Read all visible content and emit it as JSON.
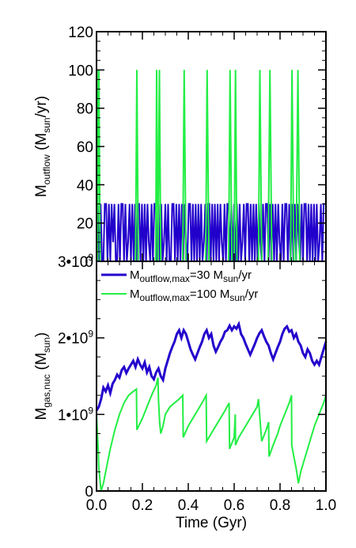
{
  "chart_data": [
    {
      "id": "top",
      "type": "line",
      "ylabel_main": "M",
      "ylabel_sub": "outflow",
      "ylabel_rest_a": " (M",
      "ylabel_rest_sub": "sun",
      "ylabel_rest_b": "/yr)",
      "ylim": [
        0,
        120
      ],
      "xlim": [
        0,
        1
      ],
      "yticks": [
        "0",
        "20",
        "40",
        "60",
        "80",
        "100",
        "120"
      ],
      "grid": false,
      "series": [
        {
          "color": "#2200cc",
          "values_x": [
            0.0,
            0.006,
            0.012,
            0.018,
            0.024,
            0.03,
            0.036,
            0.042,
            0.048,
            0.054,
            0.06,
            0.066,
            0.072,
            0.078,
            0.084,
            0.09,
            0.096,
            0.102,
            0.108,
            0.114,
            0.12,
            0.126,
            0.132,
            0.138,
            0.144,
            0.15,
            0.156,
            0.162,
            0.168,
            0.174,
            0.18,
            0.186,
            0.192,
            0.198,
            0.204,
            0.21,
            0.216,
            0.222,
            0.228,
            0.234,
            0.24,
            0.246,
            0.252,
            0.258,
            0.264,
            0.27,
            0.276,
            0.282,
            0.288,
            0.294,
            0.3,
            0.306,
            0.312,
            0.318,
            0.324,
            0.33,
            0.336,
            0.342,
            0.348,
            0.354,
            0.36,
            0.366,
            0.372,
            0.378,
            0.384,
            0.39,
            0.396,
            0.402,
            0.408,
            0.414,
            0.42,
            0.426,
            0.432,
            0.438,
            0.444,
            0.45,
            0.456,
            0.462,
            0.468,
            0.474,
            0.48,
            0.486,
            0.492,
            0.498,
            0.504,
            0.51,
            0.516,
            0.522,
            0.528,
            0.534,
            0.54,
            0.546,
            0.552,
            0.558,
            0.564,
            0.57,
            0.576,
            0.582,
            0.588,
            0.594,
            0.6,
            0.606,
            0.612,
            0.618,
            0.624,
            0.63,
            0.636,
            0.642,
            0.648,
            0.654,
            0.66,
            0.666,
            0.672,
            0.678,
            0.684,
            0.69,
            0.696,
            0.702,
            0.708,
            0.714,
            0.72,
            0.726,
            0.732,
            0.738,
            0.744,
            0.75,
            0.756,
            0.762,
            0.768,
            0.774,
            0.78,
            0.786,
            0.792,
            0.798,
            0.804,
            0.81,
            0.816,
            0.822,
            0.828,
            0.834,
            0.84,
            0.846,
            0.852,
            0.858,
            0.864,
            0.87,
            0.876,
            0.882,
            0.888,
            0.894,
            0.9,
            0.906,
            0.912,
            0.918,
            0.924,
            0.93,
            0.936,
            0.942,
            0.948,
            0.954,
            0.96,
            0.966,
            0.972,
            0.978,
            0.984,
            0.99,
            0.996
          ],
          "values_y": [
            0,
            30,
            0,
            30,
            0,
            0,
            30,
            30,
            0,
            30,
            0,
            30,
            10,
            30,
            0,
            0,
            30,
            0,
            30,
            30,
            0,
            30,
            0,
            10,
            30,
            0,
            30,
            0,
            30,
            0,
            30,
            30,
            0,
            30,
            0,
            30,
            0,
            30,
            10,
            0,
            30,
            0,
            30,
            30,
            0,
            30,
            0,
            30,
            0,
            10,
            30,
            0,
            30,
            0,
            0,
            30,
            30,
            0,
            30,
            0,
            30,
            0,
            30,
            0,
            30,
            10,
            0,
            30,
            30,
            0,
            30,
            0,
            30,
            0,
            30,
            0,
            30,
            0,
            10,
            30,
            0,
            30,
            30,
            0,
            30,
            0,
            30,
            0,
            30,
            0,
            30,
            10,
            0,
            30,
            0,
            30,
            30,
            0,
            30,
            0,
            30,
            0,
            30,
            0,
            30,
            0,
            10,
            30,
            0,
            30,
            30,
            0,
            30,
            0,
            30,
            0,
            30,
            0,
            30,
            10,
            0,
            30,
            0,
            30,
            30,
            0,
            30,
            0,
            30,
            0,
            30,
            0,
            30,
            10,
            0,
            30,
            0,
            30,
            30,
            0,
            30,
            0,
            30,
            0,
            30,
            0,
            30,
            10,
            0,
            30,
            0,
            30,
            30,
            0,
            30,
            0,
            30,
            0,
            30,
            0,
            30,
            0,
            10,
            30,
            0,
            30,
            30
          ]
        },
        {
          "color": "#22ee44",
          "values_x": [
            0.0,
            0.002,
            0.004,
            0.01,
            0.016,
            0.02,
            0.03,
            0.04,
            0.05,
            0.06,
            0.07,
            0.08,
            0.09,
            0.1,
            0.11,
            0.12,
            0.13,
            0.14,
            0.15,
            0.16,
            0.17,
            0.176,
            0.182,
            0.19,
            0.2,
            0.21,
            0.22,
            0.23,
            0.24,
            0.25,
            0.258,
            0.262,
            0.268,
            0.274,
            0.28,
            0.29,
            0.3,
            0.31,
            0.32,
            0.33,
            0.34,
            0.35,
            0.36,
            0.37,
            0.376,
            0.382,
            0.39,
            0.4,
            0.41,
            0.42,
            0.43,
            0.44,
            0.45,
            0.46,
            0.47,
            0.476,
            0.482,
            0.49,
            0.5,
            0.51,
            0.52,
            0.53,
            0.54,
            0.55,
            0.56,
            0.57,
            0.576,
            0.582,
            0.59,
            0.6,
            0.606,
            0.612,
            0.62,
            0.63,
            0.64,
            0.65,
            0.66,
            0.67,
            0.68,
            0.69,
            0.7,
            0.706,
            0.712,
            0.72,
            0.73,
            0.74,
            0.748,
            0.756,
            0.764,
            0.772,
            0.78,
            0.79,
            0.8,
            0.81,
            0.82,
            0.83,
            0.84,
            0.846,
            0.852,
            0.86,
            0.87,
            0.878,
            0.886,
            0.894,
            0.902,
            0.91,
            0.92,
            0.93,
            0.94,
            0.95,
            0.96,
            0.97,
            0.98,
            0.99,
            1.0
          ],
          "values_y": [
            0,
            100,
            0,
            100,
            0,
            0,
            0,
            0,
            0,
            0,
            0,
            0,
            0,
            0,
            0,
            0,
            0,
            0,
            0,
            0,
            0,
            100,
            0,
            0,
            0,
            0,
            0,
            0,
            0,
            0,
            0,
            100,
            0,
            100,
            0,
            0,
            0,
            0,
            0,
            0,
            0,
            0,
            0,
            0,
            0,
            100,
            0,
            0,
            0,
            0,
            0,
            0,
            0,
            0,
            0,
            0,
            100,
            0,
            0,
            0,
            0,
            0,
            0,
            0,
            0,
            0,
            0,
            100,
            0,
            0,
            100,
            0,
            0,
            0,
            0,
            0,
            0,
            0,
            0,
            0,
            0,
            0,
            100,
            0,
            0,
            0,
            0,
            100,
            0,
            0,
            0,
            0,
            0,
            0,
            0,
            0,
            0,
            0,
            100,
            0,
            0,
            100,
            0,
            0,
            0,
            0,
            0,
            0,
            0,
            0,
            0,
            0,
            0,
            0,
            0
          ]
        }
      ]
    },
    {
      "id": "bottom",
      "type": "line",
      "ylabel_main": "M",
      "ylabel_sub": "gas,nuc",
      "ylabel_rest_a": " (M",
      "ylabel_rest_sub": "sun",
      "ylabel_rest_b": ")",
      "xlabel": "Time (Gyr)",
      "ylim": [
        0,
        3000000000
      ],
      "xlim": [
        0,
        1
      ],
      "xticks": [
        "0.0",
        "0.2",
        "0.4",
        "0.6",
        "0.8",
        "1.0"
      ],
      "yticks": [
        {
          "base": "0",
          "exp": ""
        },
        {
          "base": "1•10",
          "exp": "9"
        },
        {
          "base": "2•10",
          "exp": "9"
        },
        {
          "base": "3•10",
          "exp": "9"
        }
      ],
      "grid": false,
      "legend_position": "top-left",
      "series": [
        {
          "color": "#2200cc",
          "legend_main": "M",
          "legend_sub": "outflow,max",
          "legend_mid": "=30 M",
          "legend_sub2": "sun",
          "legend_end": "/yr",
          "values_x": [
            0.0,
            0.01,
            0.02,
            0.03,
            0.04,
            0.05,
            0.06,
            0.07,
            0.08,
            0.09,
            0.1,
            0.11,
            0.12,
            0.13,
            0.14,
            0.15,
            0.16,
            0.17,
            0.18,
            0.19,
            0.2,
            0.21,
            0.22,
            0.23,
            0.24,
            0.25,
            0.26,
            0.27,
            0.28,
            0.29,
            0.3,
            0.31,
            0.32,
            0.33,
            0.34,
            0.35,
            0.36,
            0.37,
            0.38,
            0.39,
            0.4,
            0.41,
            0.42,
            0.43,
            0.44,
            0.45,
            0.46,
            0.47,
            0.48,
            0.49,
            0.5,
            0.51,
            0.52,
            0.53,
            0.54,
            0.55,
            0.56,
            0.57,
            0.58,
            0.59,
            0.6,
            0.61,
            0.62,
            0.63,
            0.64,
            0.65,
            0.66,
            0.67,
            0.68,
            0.69,
            0.7,
            0.71,
            0.72,
            0.73,
            0.74,
            0.75,
            0.76,
            0.77,
            0.78,
            0.79,
            0.8,
            0.81,
            0.82,
            0.83,
            0.84,
            0.85,
            0.86,
            0.87,
            0.88,
            0.89,
            0.9,
            0.91,
            0.92,
            0.93,
            0.94,
            0.95,
            0.96,
            0.97,
            0.98,
            0.99,
            1.0
          ],
          "values_y": [
            1050000000,
            1100000000,
            1200000000,
            1350000000,
            1300000000,
            1380000000,
            1280000000,
            1400000000,
            1450000000,
            1520000000,
            1480000000,
            1580000000,
            1620000000,
            1540000000,
            1600000000,
            1650000000,
            1700000000,
            1620000000,
            1720000000,
            1650000000,
            1600000000,
            1680000000,
            1550000000,
            1620000000,
            1500000000,
            1460000000,
            1550000000,
            1600000000,
            1500000000,
            1450000000,
            1600000000,
            1700000000,
            1800000000,
            1880000000,
            1950000000,
            2050000000,
            2100000000,
            2000000000,
            2100000000,
            2050000000,
            1950000000,
            1850000000,
            1780000000,
            1720000000,
            1800000000,
            1880000000,
            1950000000,
            2050000000,
            2100000000,
            2000000000,
            2050000000,
            1900000000,
            1820000000,
            1880000000,
            1950000000,
            2000000000,
            2080000000,
            2100000000,
            2160000000,
            2100000000,
            2150000000,
            2120000000,
            2180000000,
            2050000000,
            2000000000,
            1920000000,
            1850000000,
            1780000000,
            1850000000,
            1920000000,
            2000000000,
            2060000000,
            2100000000,
            2020000000,
            1950000000,
            1900000000,
            1800000000,
            1720000000,
            1800000000,
            1880000000,
            1950000000,
            2050000000,
            2120000000,
            2150000000,
            2080000000,
            2100000000,
            2000000000,
            2050000000,
            1950000000,
            1900000000,
            1800000000,
            1750000000,
            1850000000,
            1800000000,
            1700000000,
            1650000000,
            1700000000,
            1650000000,
            1750000000,
            1850000000,
            1950000000
          ]
        },
        {
          "color": "#22ee44",
          "legend_main": "M",
          "legend_sub": "outflow,max",
          "legend_mid": "=100 M",
          "legend_sub2": "sun",
          "legend_end": "/yr",
          "values_x": [
            0.0,
            0.008,
            0.01,
            0.02,
            0.03,
            0.04,
            0.05,
            0.06,
            0.08,
            0.1,
            0.12,
            0.14,
            0.16,
            0.174,
            0.176,
            0.2,
            0.22,
            0.24,
            0.26,
            0.268,
            0.27,
            0.275,
            0.28,
            0.29,
            0.3,
            0.32,
            0.34,
            0.36,
            0.376,
            0.378,
            0.4,
            0.42,
            0.44,
            0.46,
            0.478,
            0.48,
            0.5,
            0.52,
            0.54,
            0.56,
            0.578,
            0.58,
            0.6,
            0.605,
            0.606,
            0.62,
            0.64,
            0.66,
            0.68,
            0.7,
            0.706,
            0.72,
            0.74,
            0.75,
            0.752,
            0.77,
            0.79,
            0.8,
            0.82,
            0.84,
            0.85,
            0.851,
            0.86,
            0.87,
            0.88,
            0.89,
            0.91,
            0.93,
            0.95,
            0.97,
            0.99,
            1.0
          ],
          "values_y": [
            1000000000,
            500000000,
            300000000,
            0,
            100000000,
            250000000,
            400000000,
            550000000,
            800000000,
            1000000000,
            1150000000,
            1250000000,
            1300000000,
            1330000000,
            800000000,
            950000000,
            1100000000,
            1250000000,
            1380000000,
            1480000000,
            1200000000,
            900000000,
            750000000,
            850000000,
            1000000000,
            1100000000,
            1150000000,
            1200000000,
            1250000000,
            700000000,
            850000000,
            950000000,
            1050000000,
            1150000000,
            1250000000,
            650000000,
            750000000,
            850000000,
            950000000,
            1050000000,
            1150000000,
            550000000,
            700000000,
            1000000000,
            600000000,
            700000000,
            800000000,
            900000000,
            1000000000,
            1100000000,
            1200000000,
            650000000,
            800000000,
            900000000,
            450000000,
            600000000,
            750000000,
            850000000,
            1000000000,
            1150000000,
            1250000000,
            600000000,
            450000000,
            300000000,
            100000000,
            250000000,
            450000000,
            650000000,
            850000000,
            1000000000,
            1150000000,
            1250000000
          ]
        }
      ]
    }
  ]
}
